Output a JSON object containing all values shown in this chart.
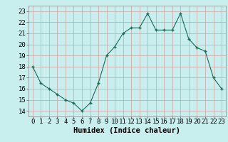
{
  "x": [
    0,
    1,
    2,
    3,
    4,
    5,
    6,
    7,
    8,
    9,
    10,
    11,
    12,
    13,
    14,
    15,
    16,
    17,
    18,
    19,
    20,
    21,
    22,
    23
  ],
  "y": [
    18,
    16.5,
    16,
    15.5,
    15,
    14.7,
    14,
    14.7,
    16.5,
    19,
    19.8,
    21,
    21.5,
    21.5,
    22.8,
    21.3,
    21.3,
    21.3,
    22.8,
    20.5,
    19.7,
    19.4,
    17,
    16
  ],
  "line_color": "#1a6b5a",
  "marker_color": "#1a6b5a",
  "bg_color": "#c8eeee",
  "grid_color": "#b0d8d8",
  "xlabel": "Humidex (Indice chaleur)",
  "xlim": [
    -0.5,
    23.5
  ],
  "ylim": [
    13.5,
    23.5
  ],
  "yticks": [
    14,
    15,
    16,
    17,
    18,
    19,
    20,
    21,
    22,
    23
  ],
  "xticks": [
    0,
    1,
    2,
    3,
    4,
    5,
    6,
    7,
    8,
    9,
    10,
    11,
    12,
    13,
    14,
    15,
    16,
    17,
    18,
    19,
    20,
    21,
    22,
    23
  ],
  "xlabel_fontsize": 7.5,
  "tick_fontsize": 6.5
}
